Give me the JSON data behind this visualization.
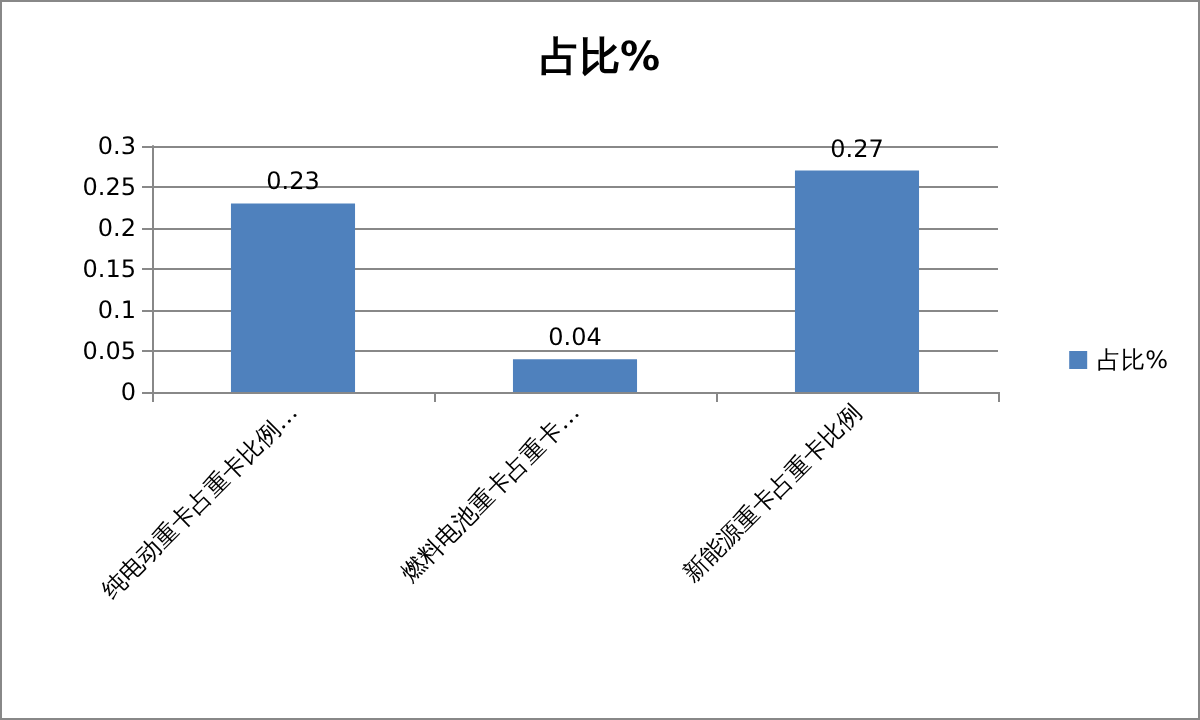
{
  "chart_data": {
    "type": "bar",
    "title": "占比%",
    "categories": [
      "纯电动重卡占重卡比例…",
      "燃料电池重卡占重卡…",
      "新能源重卡占重卡比例"
    ],
    "series": [
      {
        "name": "占比%",
        "color": "#4f81bd",
        "values": [
          0.23,
          0.04,
          0.27
        ]
      }
    ],
    "ylim": [
      0,
      0.3
    ],
    "yticks": [
      0,
      0.05,
      0.1,
      0.15,
      0.2,
      0.25,
      0.3
    ],
    "grid": "y",
    "legend": "right",
    "data_labels": true
  }
}
